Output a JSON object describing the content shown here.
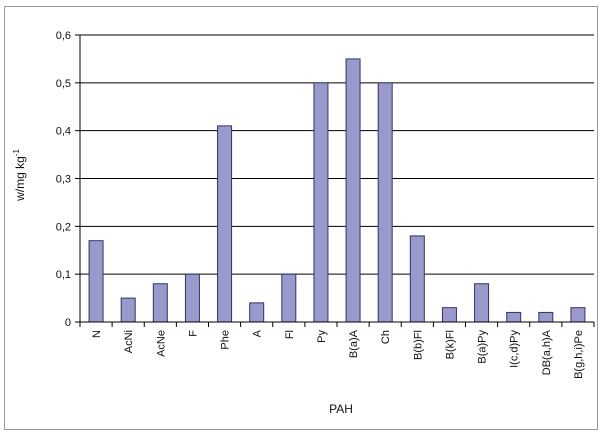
{
  "chart_data": {
    "type": "bar",
    "xlabel": "PAH",
    "ylabel": "w/mg kg",
    "ylabel_superscript": "-1",
    "categories": [
      "N",
      "AcNi",
      "AcNe",
      "F",
      "Phe",
      "A",
      "Fl",
      "Py",
      "B(a)A",
      "Ch",
      "B(b)Fl",
      "B(k)Fl",
      "B(a)Py",
      "I(c,d)Py",
      "DB(a,h)A",
      "B(g,h,i)Pe"
    ],
    "values": [
      0.17,
      0.05,
      0.08,
      0.1,
      0.41,
      0.04,
      0.1,
      0.5,
      0.55,
      0.5,
      0.18,
      0.03,
      0.08,
      0.02,
      0.02,
      0.03
    ],
    "ylim": [
      0,
      0.6
    ],
    "yticks": [
      "0",
      "0,1",
      "0,2",
      "0,3",
      "0,4",
      "0,5",
      "0,6"
    ],
    "grid": true,
    "legend": "none",
    "bar_color": "#9999cc",
    "bar_stroke": "#33336b"
  }
}
